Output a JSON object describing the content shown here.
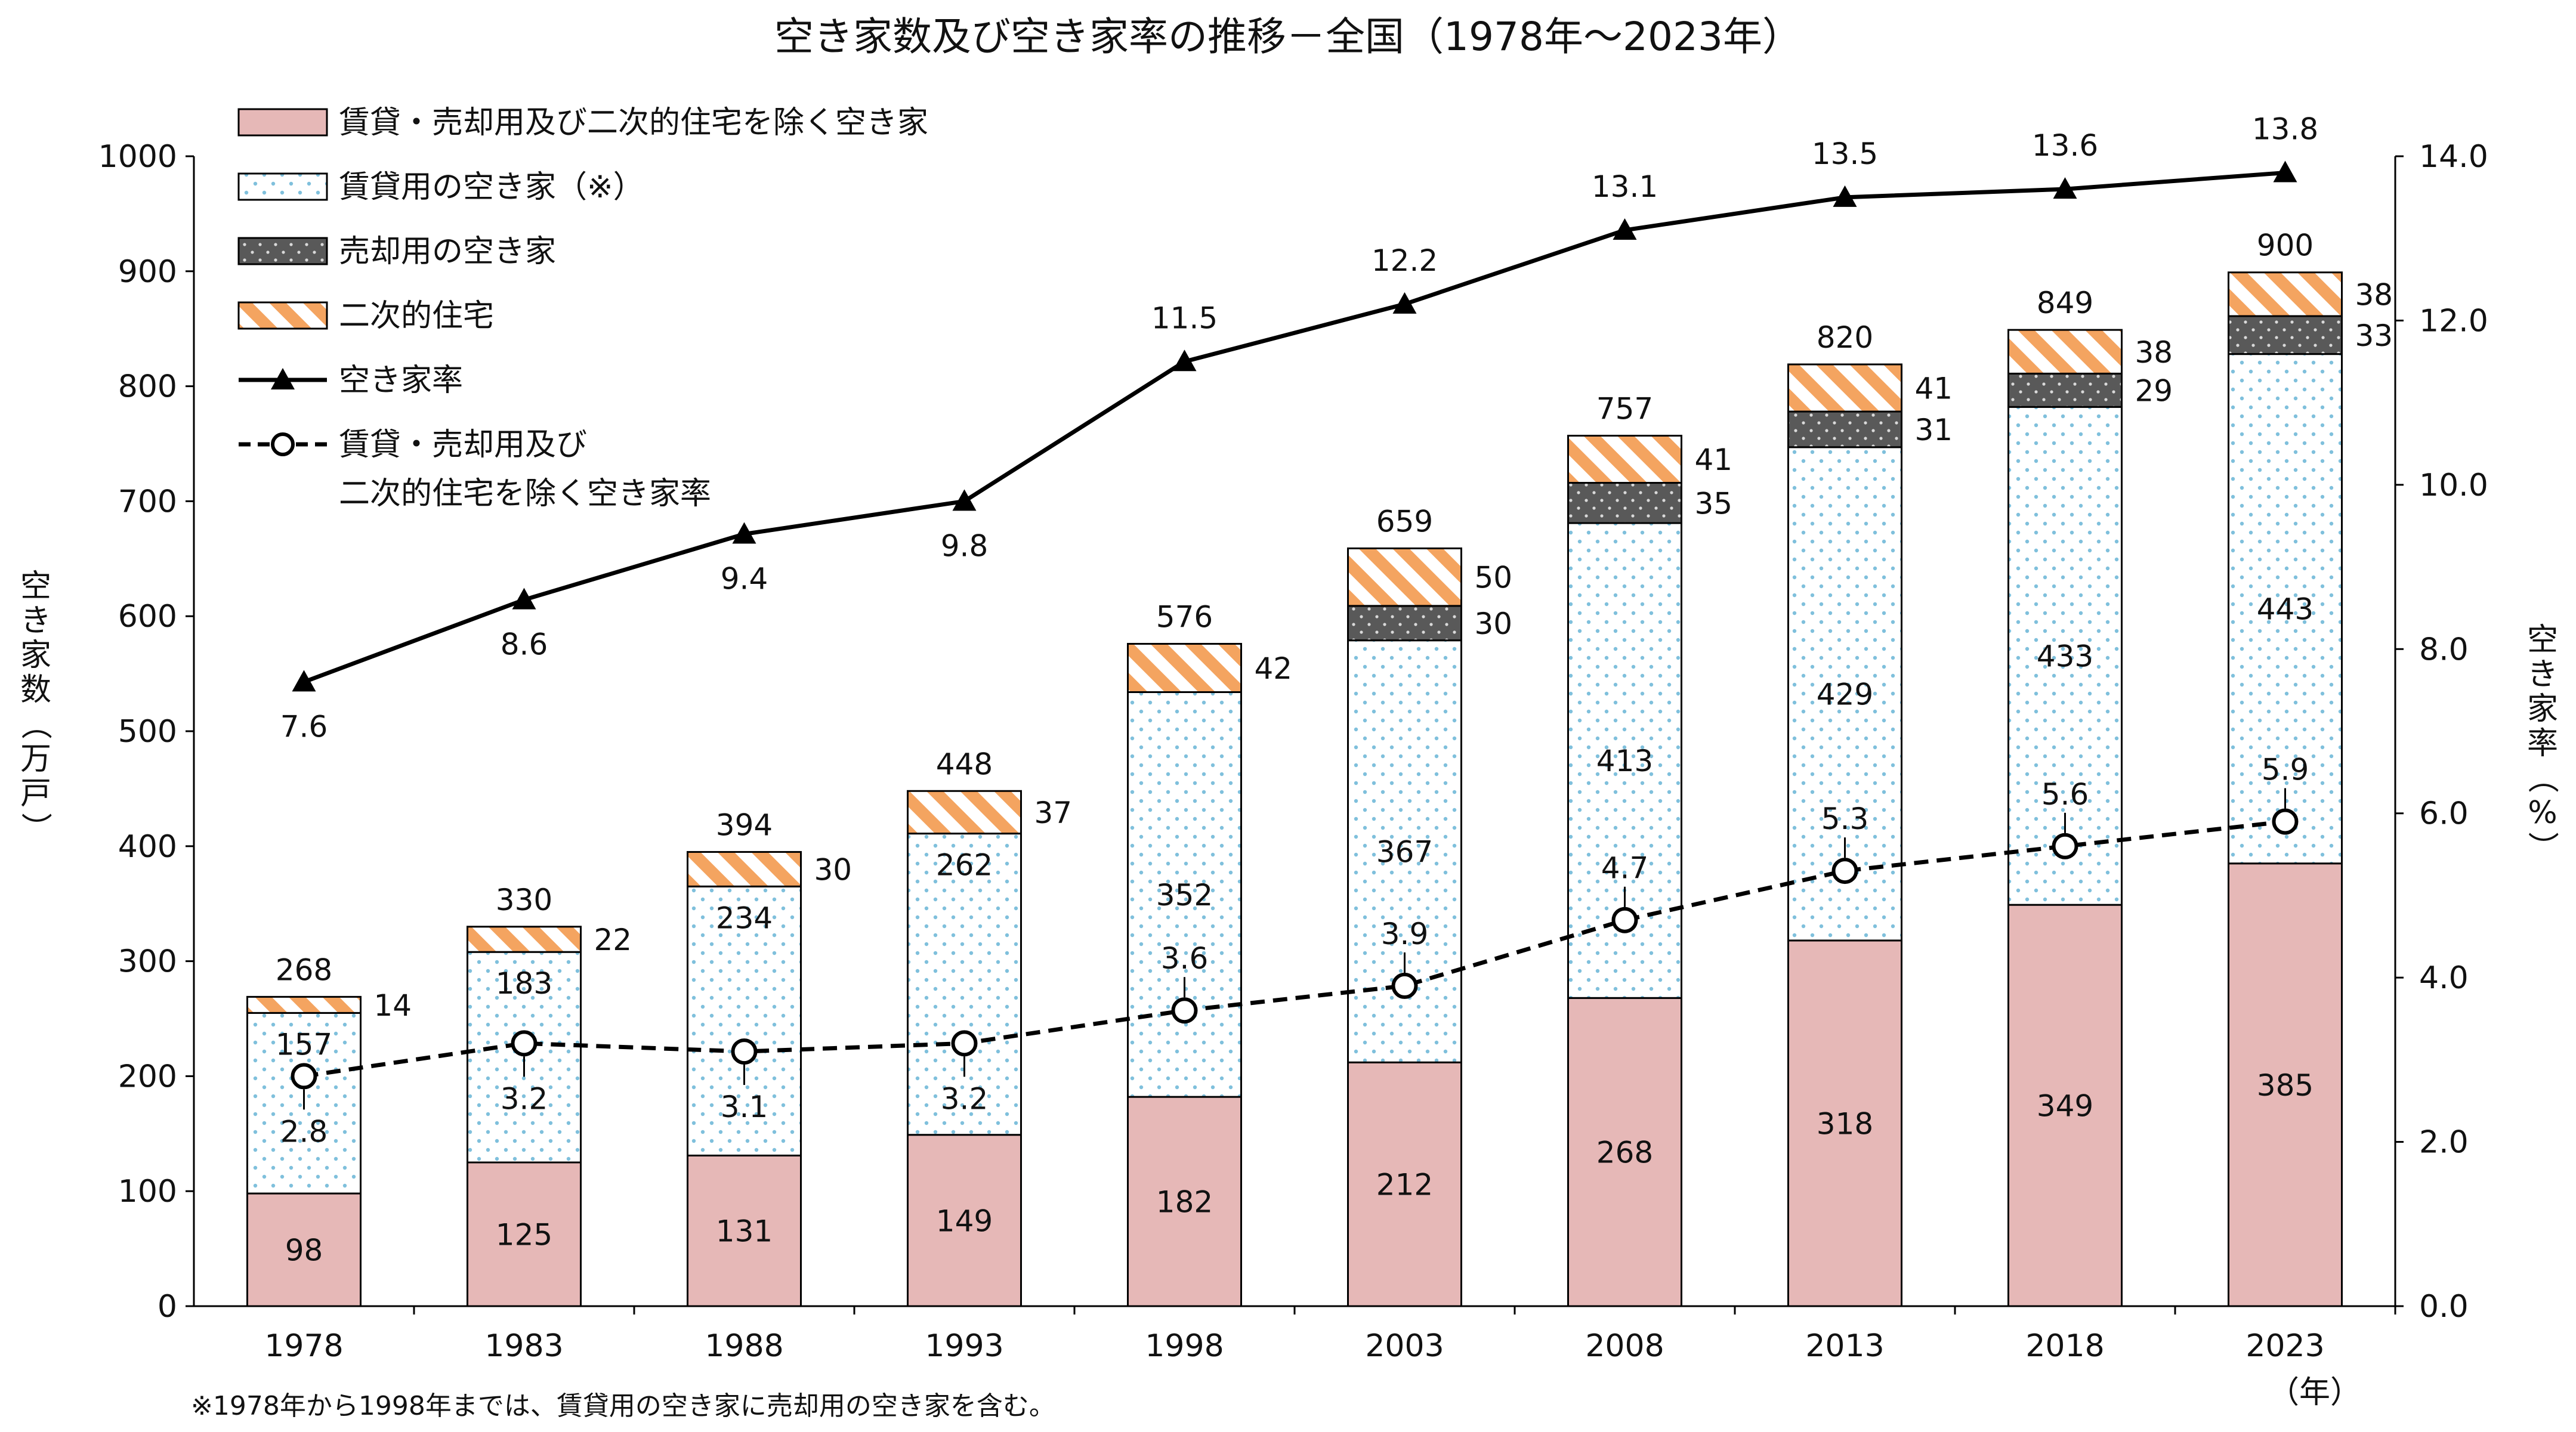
{
  "title": "空き家数及び空き家率の推移－全国（1978年～2023年）",
  "note": "※1978年から1998年までは、賃貸用の空き家に売却用の空き家を含む。",
  "chart_data": {
    "type": "bar",
    "categories": [
      "1978",
      "1983",
      "1988",
      "1993",
      "1998",
      "2003",
      "2008",
      "2013",
      "2018",
      "2023"
    ],
    "y_left": {
      "label": "空き家数（万戸）",
      "lim": [
        0,
        1000
      ],
      "ticks": [
        "0",
        "100",
        "200",
        "300",
        "400",
        "500",
        "600",
        "700",
        "800",
        "900",
        "1000"
      ]
    },
    "y_right": {
      "label": "空き家率（%）",
      "lim": [
        0,
        14
      ],
      "ticks": [
        "0.0",
        "2.0",
        "4.0",
        "6.0",
        "8.0",
        "10.0",
        "12.0",
        "14.0"
      ]
    },
    "x_unit": "（年）",
    "stacked_series": [
      {
        "name": "賃貸・売却用及び二次的住宅を除く空き家",
        "color": "#e6b8b7",
        "values": [
          98,
          125,
          131,
          149,
          182,
          212,
          268,
          318,
          349,
          385
        ],
        "labels": [
          "98",
          "125",
          "131",
          "149",
          "182",
          "212",
          "268",
          "318",
          "349",
          "385"
        ]
      },
      {
        "name": "賃貸用の空き家（※）",
        "color": "#ffffff",
        "dot_color": "#7fc0dc",
        "values": [
          157,
          183,
          234,
          262,
          352,
          367,
          413,
          429,
          433,
          443
        ],
        "labels": [
          "157",
          "183",
          "234",
          "262",
          "352",
          "367",
          "413",
          "429",
          "433",
          "443"
        ]
      },
      {
        "name": "売却用の空き家",
        "color": "#595959",
        "values": [
          null,
          null,
          null,
          null,
          null,
          30,
          35,
          31,
          29,
          33
        ],
        "labels": [
          "",
          "",
          "",
          "",
          "",
          "30",
          "35",
          "31",
          "29",
          "33"
        ]
      },
      {
        "name": "二次的住宅",
        "color": "#f4a460",
        "values": [
          14,
          22,
          30,
          37,
          42,
          50,
          41,
          41,
          38,
          38
        ],
        "labels": [
          "14",
          "22",
          "30",
          "37",
          "42",
          "50",
          "41",
          "41",
          "38",
          "38"
        ]
      }
    ],
    "totals": [
      "268",
      "330",
      "394",
      "448",
      "576",
      "659",
      "757",
      "820",
      "849",
      "900"
    ],
    "line_series": [
      {
        "name": "空き家率",
        "style": "solid-triangle",
        "axis": "right",
        "values": [
          7.6,
          8.6,
          9.4,
          9.8,
          11.5,
          12.2,
          13.1,
          13.5,
          13.6,
          13.8
        ],
        "labels": [
          "7.6",
          "8.6",
          "9.4",
          "9.8",
          "11.5",
          "12.2",
          "13.1",
          "13.5",
          "13.6",
          "13.8"
        ]
      },
      {
        "name": "賃貸・売却用及び",
        "name_line2": "二次的住宅を除く空き家率",
        "style": "dashed-circle",
        "axis": "right",
        "values": [
          2.8,
          3.2,
          3.1,
          3.2,
          3.6,
          3.9,
          4.7,
          5.3,
          5.6,
          5.9
        ],
        "labels": [
          "2.8",
          "3.2",
          "3.1",
          "3.2",
          "3.6",
          "3.9",
          "4.7",
          "5.3",
          "5.6",
          "5.9"
        ]
      }
    ],
    "legend_position": "top-left"
  }
}
